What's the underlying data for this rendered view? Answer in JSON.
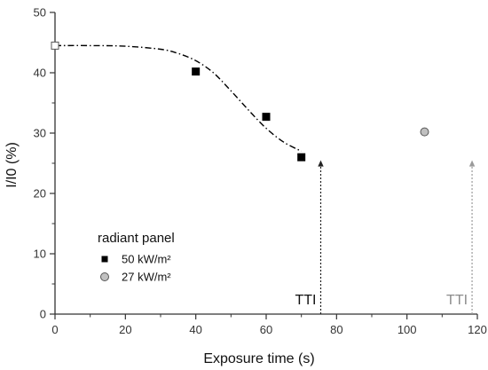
{
  "chart_data": {
    "type": "scatter",
    "xlabel": "Exposure time (s)",
    "ylabel": "I/I0 (%)",
    "xlim": [
      0,
      120
    ],
    "ylim": [
      0,
      50
    ],
    "xticks": [
      0,
      20,
      40,
      60,
      80,
      100,
      120
    ],
    "yticks": [
      0,
      10,
      20,
      30,
      40,
      50
    ],
    "grid": false,
    "legend": {
      "title": "radiant panel",
      "placement": "bottom-left"
    },
    "series": [
      {
        "name": "50 kW/m²",
        "marker": "square",
        "color": "#000000",
        "points": [
          {
            "x": 0,
            "y": 44.5
          },
          {
            "x": 40,
            "y": 40.2
          },
          {
            "x": 60,
            "y": 32.7
          },
          {
            "x": 70,
            "y": 26.0
          }
        ]
      },
      {
        "name": "27 kW/m²",
        "marker": "circle",
        "color": "#c0c0c0",
        "points": [
          {
            "x": 105,
            "y": 30.2
          }
        ]
      }
    ],
    "fit_curve": {
      "style": "dash-dot",
      "color": "#000000",
      "points": [
        {
          "x": 0,
          "y": 44.5
        },
        {
          "x": 10,
          "y": 44.5
        },
        {
          "x": 20,
          "y": 44.4
        },
        {
          "x": 30,
          "y": 43.9
        },
        {
          "x": 35,
          "y": 43.2
        },
        {
          "x": 40,
          "y": 42.0
        },
        {
          "x": 45,
          "y": 40.0
        },
        {
          "x": 50,
          "y": 37.0
        },
        {
          "x": 55,
          "y": 33.8
        },
        {
          "x": 60,
          "y": 30.8
        },
        {
          "x": 65,
          "y": 28.5
        },
        {
          "x": 70,
          "y": 27.0
        }
      ]
    },
    "annotations": [
      {
        "text": "TTI",
        "x": 75.5,
        "y_from": 0,
        "y_to": 25.5,
        "color": "#111111",
        "arrow_color": "#222222"
      },
      {
        "text": "TTI",
        "x": 118.5,
        "y_from": 0,
        "y_to": 25.5,
        "color": "#8c8c8c",
        "arrow_color": "#9a9a9a"
      }
    ]
  }
}
